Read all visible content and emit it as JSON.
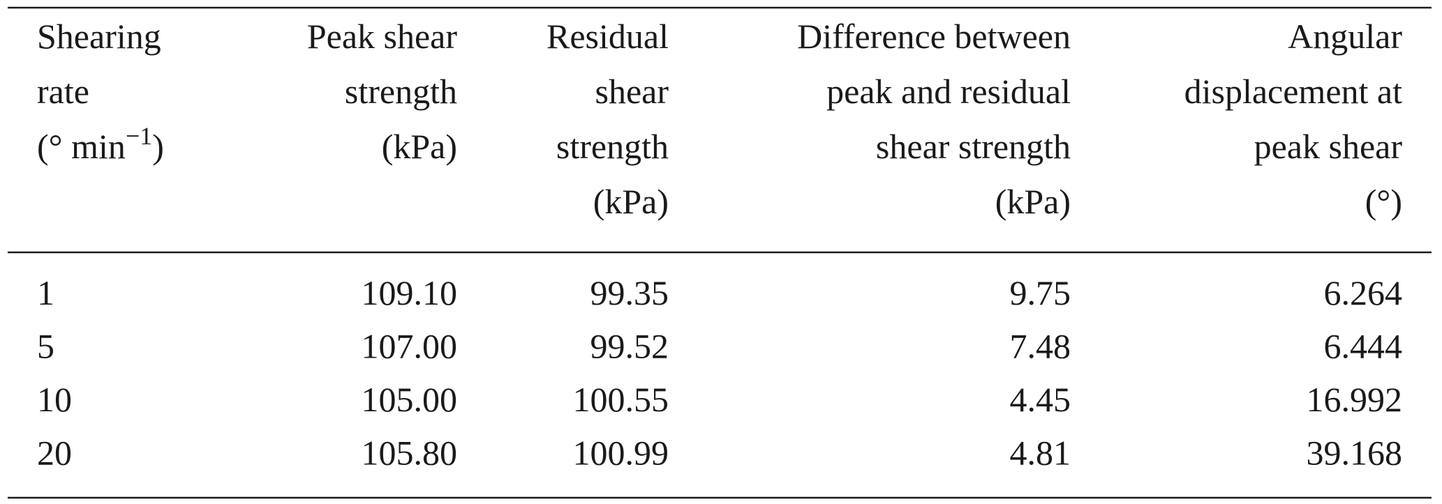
{
  "table": {
    "header": [
      [
        "Shearing",
        "rate",
        [
          "(° min",
          "−1",
          ")"
        ]
      ],
      [
        "Peak shear",
        "strength",
        "(kPa)"
      ],
      [
        "Residual",
        "shear",
        "strength",
        "(kPa)"
      ],
      [
        "Difference between",
        "peak and residual",
        "shear strength",
        "(kPa)"
      ],
      [
        "Angular",
        "displacement at",
        "peak shear",
        "(°)"
      ]
    ],
    "rows": [
      [
        "1",
        "109.10",
        "99.35",
        "9.75",
        "6.264"
      ],
      [
        "5",
        "107.00",
        "99.52",
        "7.48",
        "6.444"
      ],
      [
        "10",
        "105.00",
        "100.55",
        "4.45",
        "16.992"
      ],
      [
        "20",
        "105.80",
        "100.99",
        "4.81",
        "39.168"
      ]
    ]
  }
}
